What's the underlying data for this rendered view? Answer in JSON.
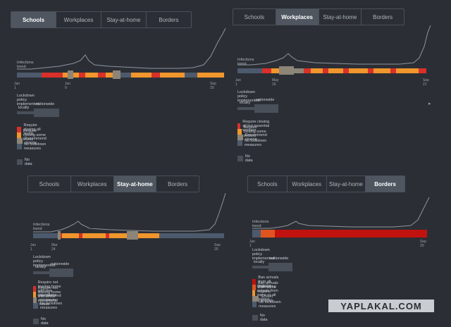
{
  "colors": {
    "red": "#d9302a",
    "orange": "#f0962c",
    "gray": "#8d8578",
    "slate": "#4d5a6d",
    "nodata": "#4a5059",
    "border_red": "#c0120f"
  },
  "panels": [
    {
      "tabs": [
        "Schools",
        "Workplaces",
        "Stay-at-home",
        "Borders"
      ],
      "active_tab": 0,
      "trend_label": "Infections trend",
      "date_start": "Jan 1",
      "date_mid": "Jun 9",
      "date_end": "Sep 20",
      "policy_title": "Lockdown policy implemented:",
      "toggle_locally": "locally",
      "toggle_nationwide": "nationwide",
      "legend": [
        {
          "label": "Require closing all levels",
          "color": "#d9302a"
        },
        {
          "label": "Require closing some levels",
          "color": "#f0962c"
        },
        {
          "label": "Recommend closing",
          "color": "#8d8578"
        },
        {
          "label": "No lockdown measures",
          "color": "#4d5a6d"
        }
      ],
      "no_data": "No data"
    },
    {
      "tabs": [
        "Schools",
        "Workplaces",
        "Stay-at-home",
        "Borders"
      ],
      "active_tab": 1,
      "trend_label": "Infections trend",
      "date_start": "Jan 1",
      "date_mid": "May 16",
      "date_end": "Sep 21",
      "policy_title": "Lockdown policy implemented:",
      "toggle_locally": "locally",
      "toggle_nationwide": "nationwide",
      "legend": [
        {
          "label": "Require closing all but essential workers",
          "color": "#d9302a"
        },
        {
          "label": "Require closing some sectors",
          "color": "#f0962c"
        },
        {
          "label": "Recommend closing",
          "color": "#8d8578"
        },
        {
          "label": "No lockdown measures",
          "color": "#4d5a6d"
        }
      ],
      "no_data": "No data"
    },
    {
      "tabs": [
        "Schools",
        "Workplaces",
        "Stay-at-home",
        "Borders"
      ],
      "active_tab": 2,
      "trend_label": "Infections trend",
      "date_start": "Jan 1",
      "date_mid": "Mar 24",
      "date_end": "Sep 20",
      "policy_title": "Lockdown policy implemented:",
      "toggle_locally": "locally",
      "toggle_nationwide": "nationwide",
      "legend": [
        {
          "label": "Require not leaving home with few exceptions",
          "color": "#d9302a"
        },
        {
          "label": "Require not leaving home with some exceptions",
          "color": "#f0962c"
        },
        {
          "label": "Recommend not leaving house",
          "color": "#8d8578"
        },
        {
          "label": "No lockdown measures",
          "color": "#4d5a6d"
        }
      ],
      "no_data": "No data"
    },
    {
      "tabs": [
        "Schools",
        "Workplaces",
        "Stay-at-home",
        "Borders"
      ],
      "active_tab": 3,
      "trend_label": "Infections trend",
      "date_start": "Jan 1",
      "date_mid": "",
      "date_end": "Sep 20",
      "policy_title": "Lockdown policy implemented:",
      "toggle_locally": "locally",
      "toggle_nationwide": "nationwide",
      "legend": [
        {
          "label": "Ban arrivals from all regions",
          "color": "#c0120f"
        },
        {
          "label": "Ban arrivals from some regions",
          "color": "#e0551f"
        },
        {
          "label": "Quarantine arrivals from some or all regions",
          "color": "#f0962c"
        },
        {
          "label": "Screen arrivals",
          "color": "#8d8578"
        },
        {
          "label": "No lockdown measures",
          "color": "#4d5a6d"
        }
      ],
      "no_data": "No data"
    }
  ],
  "watermark": "YAPLAKAL.COM"
}
